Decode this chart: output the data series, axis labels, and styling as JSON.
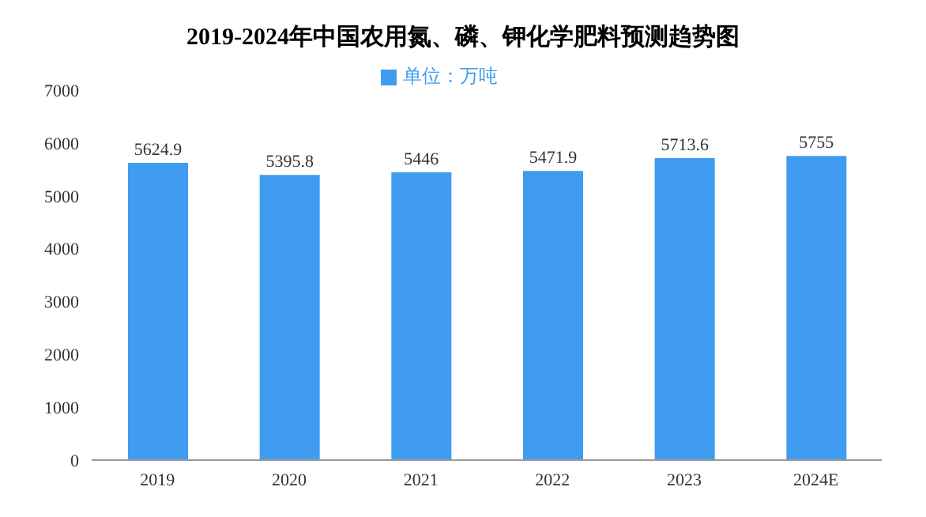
{
  "chart_data": {
    "type": "bar",
    "title": "2019-2024年中国农用氮、磷、钾化学肥料预测趋势图",
    "categories": [
      "2019",
      "2020",
      "2021",
      "2022",
      "2023",
      "2024E"
    ],
    "series": [
      {
        "name": "单位：万吨",
        "color": "#3f9cf0",
        "values": [
          5624.9,
          5395.8,
          5446,
          5471.9,
          5713.6,
          5755
        ]
      }
    ],
    "ylim": [
      0,
      7000
    ],
    "yticks": [
      0,
      1000,
      2000,
      3000,
      4000,
      5000,
      6000,
      7000
    ],
    "grid": false,
    "legend": "top",
    "data_labels": true
  }
}
